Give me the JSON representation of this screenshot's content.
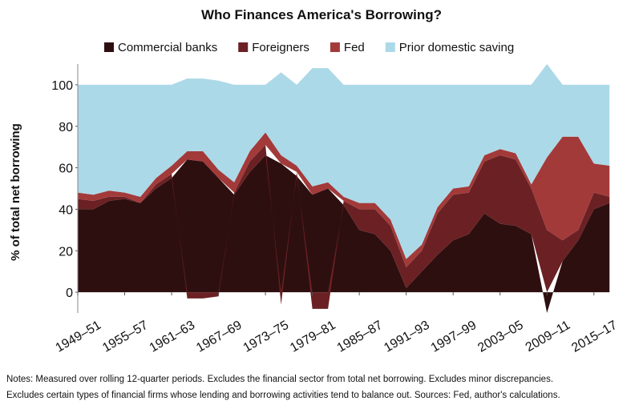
{
  "chart_data": {
    "type": "stacked_area",
    "title": "Who Finances America's Borrowing?",
    "y_label": "% of total net borrowing",
    "notes": [
      "Notes: Measured over rolling 12-quarter periods. Excludes the financial sector from total net borrowing. Excludes minor discrepancies.",
      "Excludes certain types of financial firms whose lending and borrowing activities tend to balance out. Sources: Fed, author's calculations."
    ],
    "x": [
      1949,
      1951,
      1953,
      1955,
      1957,
      1959,
      1961,
      1963,
      1965,
      1967,
      1969,
      1971,
      1973,
      1975,
      1977,
      1979,
      1981,
      1983,
      1985,
      1987,
      1989,
      1991,
      1993,
      1995,
      1997,
      1999,
      2001,
      2003,
      2005,
      2007,
      2009,
      2011,
      2013,
      2015,
      2017
    ],
    "series": [
      {
        "name": "Commercial banks",
        "color": "#2e0f10",
        "values": [
          40,
          40,
          44,
          45,
          43,
          50,
          55,
          64,
          63,
          55,
          47,
          58,
          66,
          62,
          56,
          47,
          50,
          42,
          30,
          28,
          20,
          2,
          10,
          18,
          25,
          28,
          38,
          33,
          32,
          28,
          -10,
          15,
          25,
          40,
          43
        ]
      },
      {
        "name": "Foreigners",
        "color": "#6b2123",
        "values": [
          5,
          4,
          2,
          1,
          0,
          2,
          2,
          -3,
          -3,
          -2,
          1,
          5,
          5,
          -6,
          2,
          -8,
          -8,
          2,
          10,
          12,
          12,
          10,
          10,
          20,
          22,
          20,
          25,
          33,
          32,
          22,
          30,
          10,
          5,
          8,
          3
        ]
      },
      {
        "name": "Fed",
        "color": "#a33a3a",
        "values": [
          3,
          3,
          3,
          2,
          3,
          3,
          4,
          4,
          5,
          4,
          5,
          5,
          6,
          4,
          3,
          4,
          3,
          2,
          3,
          3,
          3,
          4,
          3,
          3,
          3,
          3,
          3,
          3,
          3,
          2,
          35,
          50,
          45,
          14,
          15
        ]
      },
      {
        "name": "Prior domestic saving",
        "color": "#acd9e8",
        "values": [
          52,
          53,
          51,
          52,
          54,
          45,
          39,
          35,
          35,
          43,
          47,
          32,
          23,
          40,
          39,
          57,
          55,
          54,
          57,
          57,
          65,
          84,
          77,
          59,
          50,
          49,
          34,
          31,
          33,
          48,
          45,
          25,
          25,
          38,
          39
        ]
      }
    ],
    "xlim": [
      1949,
      2018
    ],
    "ylim": [
      -10,
      110
    ],
    "yticks": [
      0,
      20,
      40,
      60,
      80,
      100
    ],
    "xticks": [
      {
        "value": 1949,
        "label": "1949–51"
      },
      {
        "value": 1955,
        "label": "1955–57"
      },
      {
        "value": 1961,
        "label": "1961–63"
      },
      {
        "value": 1967,
        "label": "1967–69"
      },
      {
        "value": 1973,
        "label": "1973–75"
      },
      {
        "value": 1979,
        "label": "1979–81"
      },
      {
        "value": 1985,
        "label": "1985–87"
      },
      {
        "value": 1991,
        "label": "1991–93"
      },
      {
        "value": 1997,
        "label": "1997–99"
      },
      {
        "value": 2003,
        "label": "2003–05"
      },
      {
        "value": 2009,
        "label": "2009–11"
      },
      {
        "value": 2015,
        "label": "2015–17"
      }
    ],
    "legend": "top"
  }
}
